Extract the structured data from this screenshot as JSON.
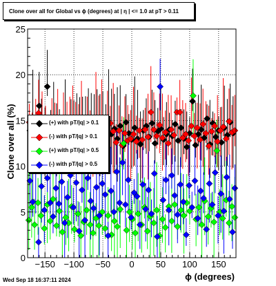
{
  "header": {
    "title": "Clone  over all for Global vs ϕ (degrees) at |  η | <= 1.0 at pT > 0.11"
  },
  "footer": {
    "timestamp": "Wed Sep 18 16:37:11 2024"
  },
  "chart_data": {
    "type": "scatter",
    "title": "Clone  over all for Global vs ϕ (degrees) at |  η | <= 1.0 at pT > 0.11",
    "xlabel": "ϕ (degrees)",
    "ylabel": "Clone  over all (%)",
    "xlim": [
      -180,
      180
    ],
    "ylim": [
      0,
      25
    ],
    "x_ticks": [
      -150,
      -100,
      -50,
      0,
      50,
      100,
      150
    ],
    "x_tick_labels": [
      "−150",
      "−100",
      "−50",
      "0",
      "50",
      "100",
      "150"
    ],
    "y_ticks": [
      0,
      5,
      10,
      15,
      20,
      25
    ],
    "y_tick_labels": [
      "0",
      "5",
      "10",
      "15",
      "20",
      "25"
    ],
    "grid": true,
    "legend_position": "middle-left",
    "series": [
      {
        "name": "(+) with pT/|q| > 0.1",
        "color": "#000000",
        "points": [
          [
            -176,
            13.9
          ],
          [
            -171,
            15.2
          ],
          [
            -165,
            13.5
          ],
          [
            -160,
            16.6
          ],
          [
            -156,
            14.5
          ],
          [
            -150,
            13.2
          ],
          [
            -146,
            18.7
          ],
          [
            -140,
            14.2
          ],
          [
            -135,
            15.0
          ],
          [
            -130,
            13.6
          ],
          [
            -125,
            14.9
          ],
          [
            -120,
            13.2
          ],
          [
            -115,
            14.6
          ],
          [
            -110,
            13.9
          ],
          [
            -105,
            15.3
          ],
          [
            -100,
            14.0
          ],
          [
            -95,
            12.6
          ],
          [
            -90,
            14.4
          ],
          [
            -85,
            13.5
          ],
          [
            -80,
            15.0
          ],
          [
            -75,
            13.9
          ],
          [
            -70,
            14.3
          ],
          [
            -65,
            13.7
          ],
          [
            -60,
            14.6
          ],
          [
            -55,
            12.8
          ],
          [
            -50,
            14.0
          ],
          [
            -45,
            13.3
          ],
          [
            -40,
            14.9
          ],
          [
            -35,
            13.5
          ],
          [
            -30,
            14.1
          ],
          [
            -25,
            13.0
          ],
          [
            -20,
            14.4
          ],
          [
            -15,
            12.2
          ],
          [
            -10,
            14.8
          ],
          [
            -5,
            13.6
          ],
          [
            0,
            12.9
          ],
          [
            5,
            14.2
          ],
          [
            10,
            13.0
          ],
          [
            15,
            12.4
          ],
          [
            20,
            13.9
          ],
          [
            25,
            14.4
          ],
          [
            30,
            13.2
          ],
          [
            35,
            14.7
          ],
          [
            40,
            12.5
          ],
          [
            45,
            13.8
          ],
          [
            50,
            14.1
          ],
          [
            55,
            12.9
          ],
          [
            60,
            13.5
          ],
          [
            65,
            14.0
          ],
          [
            70,
            13.3
          ],
          [
            75,
            14.6
          ],
          [
            80,
            12.8
          ],
          [
            85,
            14.2
          ],
          [
            90,
            13.0
          ],
          [
            95,
            12.1
          ],
          [
            100,
            13.6
          ],
          [
            105,
            17.1
          ],
          [
            110,
            12.3
          ],
          [
            115,
            13.5
          ],
          [
            120,
            14.0
          ],
          [
            125,
            13.1
          ],
          [
            130,
            15.2
          ],
          [
            135,
            12.4
          ],
          [
            140,
            14.7
          ],
          [
            145,
            13.2
          ],
          [
            150,
            13.9
          ],
          [
            155,
            12.6
          ],
          [
            160,
            14.2
          ],
          [
            165,
            13.4
          ],
          [
            170,
            14.8
          ],
          [
            175,
            13.6
          ]
        ]
      },
      {
        "name": "(-) with pT/|q| > 0.1",
        "color": "#ff0000",
        "points": [
          [
            -177,
            14.8
          ],
          [
            -172,
            13.5
          ],
          [
            -166,
            14.2
          ],
          [
            -161,
            15.8
          ],
          [
            -155,
            13.7
          ],
          [
            -149,
            14.6
          ],
          [
            -144,
            13.3
          ],
          [
            -138,
            14.0
          ],
          [
            -133,
            13.6
          ],
          [
            -128,
            14.9
          ],
          [
            -123,
            13.8
          ],
          [
            -118,
            14.2
          ],
          [
            -112,
            13.1
          ],
          [
            -107,
            14.6
          ],
          [
            -102,
            13.8
          ],
          [
            -97,
            14.3
          ],
          [
            -92,
            13.0
          ],
          [
            -87,
            14.7
          ],
          [
            -82,
            13.9
          ],
          [
            -77,
            15.1
          ],
          [
            -72,
            14.3
          ],
          [
            -67,
            13.5
          ],
          [
            -62,
            14.8
          ],
          [
            -57,
            13.7
          ],
          [
            -52,
            14.1
          ],
          [
            -47,
            12.9
          ],
          [
            -42,
            13.6
          ],
          [
            -37,
            14.7
          ],
          [
            -32,
            13.8
          ],
          [
            -27,
            12.6
          ],
          [
            -22,
            13.9
          ],
          [
            -17,
            12.3
          ],
          [
            -12,
            13.6
          ],
          [
            -7,
            12.8
          ],
          [
            -2,
            13.0
          ],
          [
            3,
            13.5
          ],
          [
            8,
            12.7
          ],
          [
            13,
            13.9
          ],
          [
            18,
            12.9
          ],
          [
            23,
            14.0
          ],
          [
            28,
            13.2
          ],
          [
            33,
            15.9
          ],
          [
            38,
            14.0
          ],
          [
            43,
            13.3
          ],
          [
            48,
            14.5
          ],
          [
            53,
            13.1
          ],
          [
            58,
            13.7
          ],
          [
            63,
            12.5
          ],
          [
            68,
            14.0
          ],
          [
            73,
            13.4
          ],
          [
            78,
            15.9
          ],
          [
            83,
            15.9
          ],
          [
            88,
            13.1
          ],
          [
            93,
            13.5
          ],
          [
            98,
            12.8
          ],
          [
            103,
            14.4
          ],
          [
            108,
            13.3
          ],
          [
            113,
            14.2
          ],
          [
            118,
            12.9
          ],
          [
            123,
            14.6
          ],
          [
            128,
            13.6
          ],
          [
            133,
            12.2
          ],
          [
            138,
            13.8
          ],
          [
            143,
            14.4
          ],
          [
            148,
            12.7
          ],
          [
            153,
            13.9
          ],
          [
            158,
            14.3
          ],
          [
            163,
            13.0
          ],
          [
            168,
            14.9
          ],
          [
            173,
            13.7
          ],
          [
            178,
            13.9
          ]
        ]
      },
      {
        "name": "(+) with pT/|q| > 0.5",
        "color": "#00ff00",
        "points": [
          [
            -178,
            4.1
          ],
          [
            -173,
            5.5
          ],
          [
            -168,
            3.6
          ],
          [
            -162,
            6.0
          ],
          [
            -157,
            4.6
          ],
          [
            -151,
            3.2
          ],
          [
            -146,
            5.8
          ],
          [
            -141,
            4.0
          ],
          [
            -136,
            6.4
          ],
          [
            -130,
            3.5
          ],
          [
            -125,
            5.1
          ],
          [
            -120,
            2.8
          ],
          [
            -114,
            4.4
          ],
          [
            -109,
            3.8
          ],
          [
            -104,
            5.6
          ],
          [
            -99,
            3.1
          ],
          [
            -93,
            4.8
          ],
          [
            -88,
            2.4
          ],
          [
            -83,
            3.9
          ],
          [
            -78,
            5.2
          ],
          [
            -72,
            3.6
          ],
          [
            -67,
            2.7
          ],
          [
            -62,
            4.3
          ],
          [
            -57,
            3.5
          ],
          [
            -51,
            5.0
          ],
          [
            -46,
            3.2
          ],
          [
            -41,
            4.6
          ],
          [
            -35,
            2.5
          ],
          [
            -30,
            4.0
          ],
          [
            -25,
            3.4
          ],
          [
            -20,
            5.3
          ],
          [
            -14,
            12.5
          ],
          [
            -9,
            3.0
          ],
          [
            -4,
            5.0
          ],
          [
            1,
            4.2
          ],
          [
            6,
            2.7
          ],
          [
            11,
            4.8
          ],
          [
            17,
            3.6
          ],
          [
            22,
            5.5
          ],
          [
            27,
            2.9
          ],
          [
            32,
            4.5
          ],
          [
            38,
            3.8
          ],
          [
            43,
            5.2
          ],
          [
            48,
            2.4
          ],
          [
            53,
            4.2
          ],
          [
            58,
            3.3
          ],
          [
            64,
            5.6
          ],
          [
            69,
            4.0
          ],
          [
            74,
            5.8
          ],
          [
            79,
            3.4
          ],
          [
            85,
            5.2
          ],
          [
            90,
            4.6
          ],
          [
            95,
            6.0
          ],
          [
            100,
            5.1
          ],
          [
            106,
            17.7
          ],
          [
            111,
            4.2
          ],
          [
            116,
            5.5
          ],
          [
            121,
            3.6
          ],
          [
            126,
            6.2
          ],
          [
            132,
            4.5
          ],
          [
            137,
            5.4
          ],
          [
            142,
            3.9
          ],
          [
            147,
            11.7
          ],
          [
            152,
            5.0
          ],
          [
            157,
            4.3
          ],
          [
            163,
            6.3
          ],
          [
            168,
            3.8
          ],
          [
            173,
            5.6
          ],
          [
            178,
            4.4
          ]
        ]
      },
      {
        "name": "(-) with pT/|q| > 0.5",
        "color": "#0000ff",
        "points": [
          [
            -176,
            8.4
          ],
          [
            -171,
            6.1
          ],
          [
            -166,
            9.6
          ],
          [
            -161,
            1.7
          ],
          [
            -156,
            7.8
          ],
          [
            -151,
            5.2
          ],
          [
            -146,
            8.7
          ],
          [
            -141,
            6.0
          ],
          [
            -136,
            4.5
          ],
          [
            -131,
            7.6
          ],
          [
            -126,
            5.9
          ],
          [
            -121,
            8.3
          ],
          [
            -116,
            3.8
          ],
          [
            -111,
            6.6
          ],
          [
            -106,
            9.0
          ],
          [
            -101,
            5.5
          ],
          [
            -96,
            8.2
          ],
          [
            -91,
            2.9
          ],
          [
            -86,
            7.4
          ],
          [
            -81,
            4.1
          ],
          [
            -76,
            8.7
          ],
          [
            -71,
            6.2
          ],
          [
            -66,
            5.4
          ],
          [
            -61,
            7.7
          ],
          [
            -56,
            4.6
          ],
          [
            -51,
            8.1
          ],
          [
            -46,
            6.9
          ],
          [
            -41,
            2.4
          ],
          [
            -36,
            7.3
          ],
          [
            -31,
            5.0
          ],
          [
            -26,
            9.4
          ],
          [
            -21,
            6.0
          ],
          [
            -16,
            10.4
          ],
          [
            -11,
            5.8
          ],
          [
            -6,
            8.5
          ],
          [
            -1,
            4.4
          ],
          [
            4,
            7.1
          ],
          [
            9,
            6.7
          ],
          [
            14,
            3.6
          ],
          [
            19,
            8.0
          ],
          [
            24,
            5.3
          ],
          [
            29,
            7.4
          ],
          [
            34,
            4.8
          ],
          [
            39,
            9.2
          ],
          [
            44,
            2.3
          ],
          [
            49,
            18.7
          ],
          [
            54,
            6.3
          ],
          [
            59,
            8.5
          ],
          [
            64,
            5.2
          ],
          [
            69,
            9.0
          ],
          [
            74,
            6.8
          ],
          [
            79,
            4.7
          ],
          [
            84,
            8.0
          ],
          [
            89,
            6.1
          ],
          [
            94,
            2.5
          ],
          [
            99,
            7.9
          ],
          [
            104,
            5.5
          ],
          [
            109,
            8.4
          ],
          [
            114,
            4.3
          ],
          [
            119,
            7.3
          ],
          [
            124,
            6.5
          ],
          [
            129,
            3.1
          ],
          [
            134,
            8.1
          ],
          [
            139,
            5.8
          ],
          [
            144,
            9.3
          ],
          [
            149,
            4.6
          ],
          [
            154,
            7.0
          ],
          [
            159,
            5.1
          ],
          [
            164,
            8.8
          ],
          [
            169,
            6.4
          ],
          [
            174,
            2.8
          ],
          [
            178,
            7.6
          ]
        ]
      }
    ]
  }
}
